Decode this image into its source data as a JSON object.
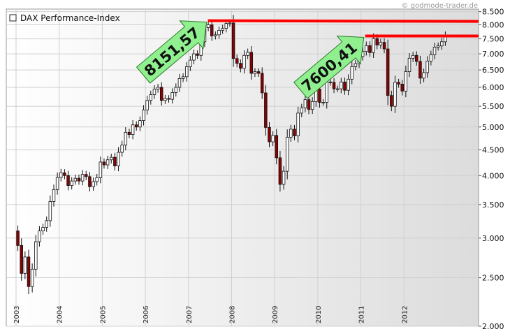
{
  "chart_data": {
    "type": "candlestick",
    "title": "DAX Performance-Index",
    "source": "© godmode-trader.de",
    "y_scale": "log",
    "ylim": [
      2000,
      8600
    ],
    "y_ticks": [
      {
        "v": 8500,
        "label": "8.500"
      },
      {
        "v": 8000,
        "label": "8.000"
      },
      {
        "v": 7500,
        "label": "7.500"
      },
      {
        "v": 7000,
        "label": "7.000"
      },
      {
        "v": 6500,
        "label": "6.500"
      },
      {
        "v": 6000,
        "label": "6.000"
      },
      {
        "v": 5500,
        "label": "5.500"
      },
      {
        "v": 5000,
        "label": "5.000"
      },
      {
        "v": 4500,
        "label": "4.500"
      },
      {
        "v": 4000,
        "label": "4.000"
      },
      {
        "v": 3500,
        "label": "3.500"
      },
      {
        "v": 3000,
        "label": "3.000"
      },
      {
        "v": 2500,
        "label": "2.500"
      },
      {
        "v": 2000,
        "label": "2.000"
      }
    ],
    "x_labels": [
      "2003",
      "2004",
      "2005",
      "2006",
      "2007",
      "2008",
      "2009",
      "2010",
      "2011",
      "2012"
    ],
    "x_start_year": 2003,
    "x_end_year": 2013,
    "grid": true,
    "up_color": "#ffffff",
    "down_color": "#8b0000",
    "resistance_color": "#ff0000",
    "arrow_color": "#90f090",
    "resistance_levels": [
      {
        "value": 8151.57,
        "label": "8151,57",
        "from_year": 2007.45
      },
      {
        "value": 7600.41,
        "label": "7600,41",
        "from_year": 2011.1
      }
    ],
    "monthly_closes": [
      3100,
      2900,
      2550,
      2750,
      2400,
      2600,
      2950,
      3100,
      3150,
      3250,
      3550,
      3750,
      3965,
      4050,
      4000,
      3820,
      3900,
      3950,
      3900,
      4020,
      3980,
      3800,
      3890,
      3960,
      4256,
      4200,
      4300,
      4350,
      4180,
      4450,
      4600,
      4880,
      4830,
      5050,
      5000,
      5150,
      5408,
      5650,
      5800,
      5950,
      6000,
      5650,
      5700,
      5680,
      5860,
      6000,
      6250,
      6300,
      6597,
      6800,
      7000,
      6950,
      7400,
      7900,
      8000,
      7600,
      7640,
      7800,
      7870,
      8050,
      8067,
      6850,
      6700,
      6550,
      6950,
      7050,
      6400,
      6450,
      6400,
      5850,
      4990,
      4670,
      4810,
      4340,
      3840,
      4080,
      4770,
      4950,
      4800,
      5330,
      5460,
      5670,
      5420,
      5620,
      5957,
      5600,
      5600,
      6150,
      6140,
      5960,
      5960,
      6150,
      5920,
      6230,
      6600,
      6690,
      6914,
      7080,
      7270,
      7040,
      7510,
      7290,
      7380,
      7160,
      5780,
      5500,
      6140,
      6090,
      5898,
      6450,
      6860,
      6950,
      6760,
      6260,
      6420,
      6770,
      6970,
      7220,
      7260,
      7400,
      7612
    ]
  }
}
